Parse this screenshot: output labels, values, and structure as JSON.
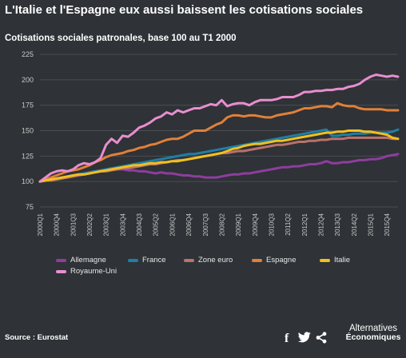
{
  "header": {
    "title": "L'Italie et l'Espagne eux aussi baissent les cotisations sociales",
    "subtitle": "Cotisations sociales patronales, base 100 au T1 2000"
  },
  "footer": {
    "source": "Source : Eurostat",
    "brand_line1": "Alternatives",
    "brand_line2": "Économiques",
    "facebook_glyph": "f"
  },
  "colors": {
    "background": "#2f3236",
    "grid": "#4a4e53",
    "axis_text": "#c8c8c8"
  },
  "chart_data": {
    "type": "line",
    "title": "Cotisations sociales patronales, base 100 au T1 2000",
    "xlabel": "",
    "ylabel": "",
    "ylim": [
      75,
      225
    ],
    "yticks": [
      75,
      100,
      125,
      150,
      175,
      200,
      225
    ],
    "grid": true,
    "legend_position": "bottom",
    "x": [
      "2000Q1",
      "2000Q2",
      "2000Q3",
      "2000Q4",
      "2001Q1",
      "2001Q2",
      "2001Q3",
      "2001Q4",
      "2002Q1",
      "2002Q2",
      "2002Q3",
      "2002Q4",
      "2003Q1",
      "2003Q2",
      "2003Q3",
      "2003Q4",
      "2004Q1",
      "2004Q2",
      "2004Q3",
      "2004Q4",
      "2005Q1",
      "2005Q2",
      "2005Q3",
      "2005Q4",
      "2006Q1",
      "2006Q2",
      "2006Q3",
      "2006Q4",
      "2007Q1",
      "2007Q2",
      "2007Q3",
      "2007Q4",
      "2008Q1",
      "2008Q2",
      "2008Q3",
      "2008Q4",
      "2009Q1",
      "2009Q2",
      "2009Q3",
      "2009Q4",
      "2010Q1",
      "2010Q2",
      "2010Q3",
      "2010Q4",
      "2011Q1",
      "2011Q2",
      "2011Q3",
      "2011Q4",
      "2012Q1",
      "2012Q2",
      "2012Q3",
      "2012Q4",
      "2013Q1",
      "2013Q2",
      "2013Q3",
      "2013Q4",
      "2014Q1",
      "2014Q2",
      "2014Q3",
      "2014Q4",
      "2015Q1",
      "2015Q2",
      "2015Q3",
      "2015Q4",
      "2016Q1",
      "2016Q2"
    ],
    "x_tick_labels": [
      "2000Q1",
      "2000Q4",
      "2001Q3",
      "2002Q2",
      "2003Q1",
      "2003Q4",
      "2004Q3",
      "2005Q2",
      "2006Q1",
      "2006Q4",
      "2007Q3",
      "2008Q2",
      "2009Q1",
      "2009Q4",
      "2010Q3",
      "2011Q2",
      "2012Q1",
      "2012Q4",
      "2013Q3",
      "2014Q2",
      "2015Q1",
      "2015Q4"
    ],
    "series": [
      {
        "name": "Allemagne",
        "color": "#8e3d9e",
        "values": [
          100,
          101,
          102,
          103,
          104,
          105,
          106,
          107,
          108,
          109,
          110,
          111,
          111,
          112,
          112,
          112,
          111,
          111,
          110,
          110,
          109,
          108,
          109,
          108,
          108,
          107,
          106,
          106,
          105,
          105,
          104,
          104,
          104,
          105,
          106,
          107,
          107,
          108,
          108,
          109,
          110,
          111,
          112,
          113,
          114,
          114,
          115,
          115,
          116,
          117,
          117,
          118,
          120,
          118,
          118,
          119,
          119,
          120,
          121,
          121,
          122,
          122,
          123,
          125,
          126,
          127
        ]
      },
      {
        "name": "France",
        "color": "#1f7fa6",
        "values": [
          100,
          101,
          102,
          103,
          104,
          105,
          106,
          107,
          108,
          109,
          110,
          111,
          112,
          113,
          114,
          115,
          116,
          117,
          118,
          119,
          120,
          121,
          122,
          123,
          124,
          125,
          126,
          127,
          127,
          128,
          129,
          130,
          131,
          132,
          133,
          134,
          135,
          136,
          137,
          138,
          139,
          140,
          141,
          142,
          143,
          144,
          145,
          146,
          147,
          148,
          149,
          150,
          151,
          145,
          145,
          146,
          146,
          147,
          147,
          147,
          148,
          148,
          148,
          148,
          149,
          151
        ]
      },
      {
        "name": "Zone euro",
        "color": "#b9726c",
        "values": [
          100,
          101,
          101,
          102,
          103,
          104,
          105,
          106,
          107,
          108,
          109,
          110,
          110,
          111,
          112,
          113,
          113,
          114,
          115,
          116,
          117,
          117,
          118,
          119,
          120,
          121,
          121,
          122,
          123,
          124,
          125,
          126,
          127,
          128,
          128,
          129,
          130,
          130,
          131,
          132,
          133,
          134,
          135,
          136,
          136,
          137,
          138,
          139,
          139,
          140,
          140,
          141,
          141,
          142,
          142,
          142,
          143,
          143,
          143,
          143,
          143,
          143,
          143,
          143,
          142,
          142
        ]
      },
      {
        "name": "Espagne",
        "color": "#e0803a",
        "values": [
          100,
          102,
          104,
          106,
          108,
          110,
          111,
          112,
          114,
          116,
          119,
          121,
          124,
          126,
          127,
          128,
          130,
          131,
          133,
          134,
          136,
          137,
          139,
          141,
          142,
          142,
          144,
          147,
          150,
          150,
          150,
          153,
          156,
          158,
          163,
          165,
          165,
          164,
          165,
          165,
          164,
          163,
          163,
          165,
          166,
          167,
          168,
          170,
          172,
          172,
          173,
          174,
          174,
          173,
          177,
          175,
          174,
          174,
          172,
          171,
          171,
          171,
          171,
          170,
          170,
          170
        ]
      },
      {
        "name": "Italie",
        "color": "#f0c020",
        "values": [
          100,
          101,
          102,
          103,
          104,
          105,
          106,
          107,
          107,
          108,
          109,
          110,
          111,
          112,
          113,
          114,
          115,
          116,
          116,
          117,
          118,
          118,
          119,
          119,
          120,
          120,
          121,
          122,
          123,
          124,
          125,
          126,
          127,
          128,
          130,
          132,
          133,
          135,
          136,
          137,
          137,
          138,
          139,
          140,
          140,
          141,
          142,
          143,
          144,
          145,
          146,
          147,
          148,
          148,
          149,
          149,
          150,
          150,
          150,
          149,
          149,
          148,
          147,
          146,
          143,
          142
        ]
      },
      {
        "name": "Royaume-Uni",
        "color": "#e88ed0",
        "values": [
          100,
          104,
          108,
          110,
          111,
          110,
          112,
          116,
          118,
          117,
          119,
          123,
          136,
          142,
          138,
          145,
          144,
          148,
          153,
          155,
          158,
          162,
          164,
          168,
          166,
          170,
          168,
          170,
          172,
          172,
          174,
          176,
          175,
          180,
          174,
          176,
          177,
          177,
          175,
          178,
          180,
          180,
          180,
          181,
          183,
          183,
          183,
          185,
          188,
          188,
          189,
          189,
          190,
          190,
          191,
          191,
          193,
          194,
          196,
          200,
          203,
          205,
          204,
          203,
          204,
          203
        ]
      }
    ]
  }
}
